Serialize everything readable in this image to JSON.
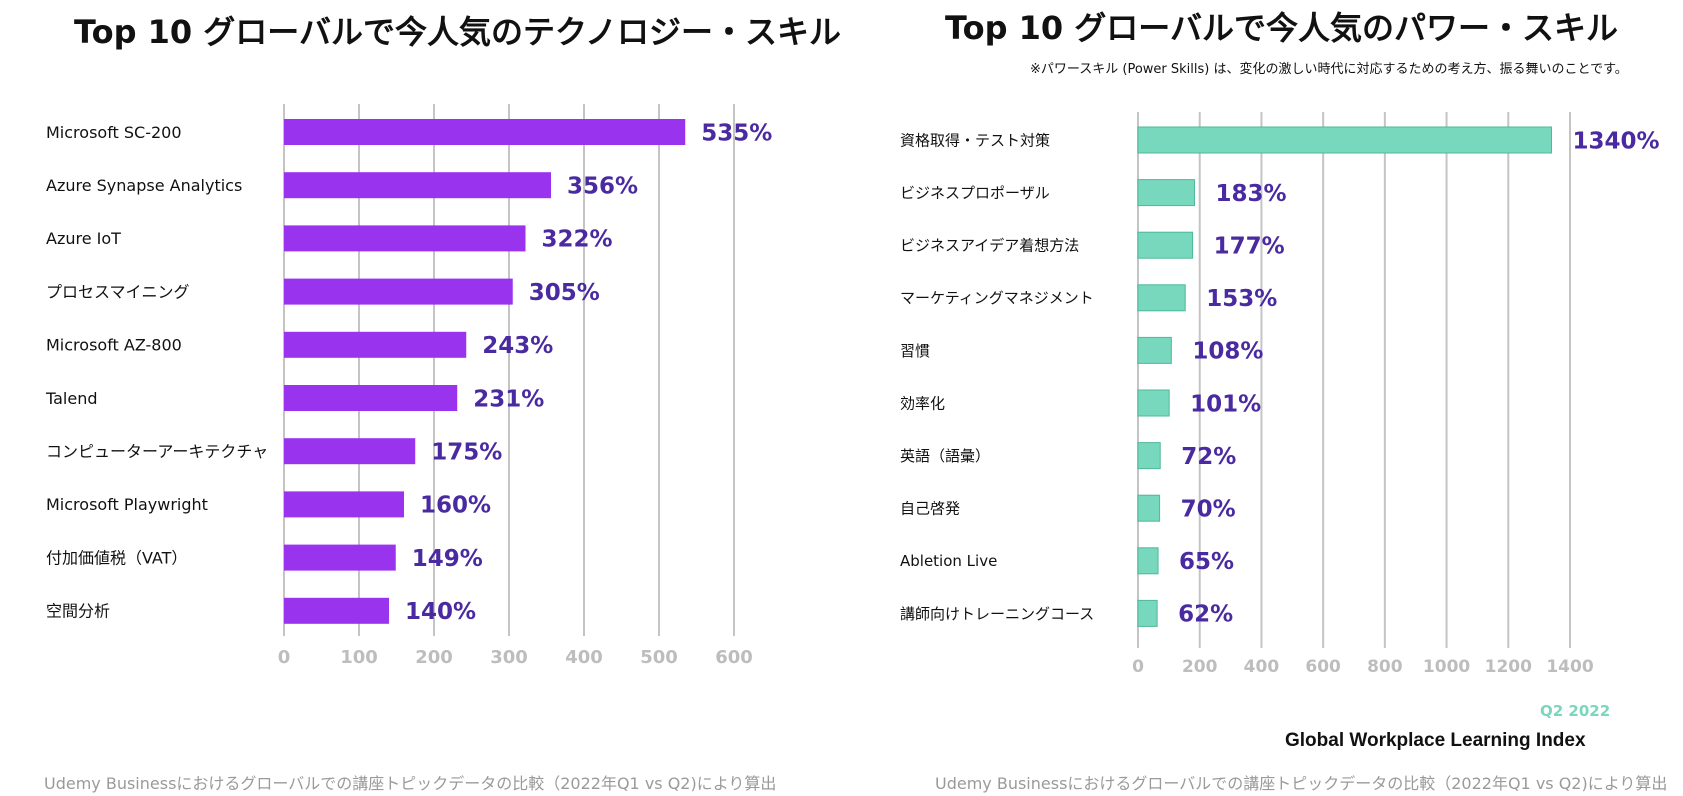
{
  "chart_data": [
    {
      "type": "bar",
      "orientation": "horizontal",
      "title": "Top 10 グローバルで今人気のテクノロジー・スキル",
      "categories": [
        "Microsoft SC-200",
        "Azure Synapse Analytics",
        "Azure IoT",
        "プロセスマイニング",
        "Microsoft AZ-800",
        "Talend",
        "コンピューターアーキテクチャ",
        "Microsoft Playwright",
        "付加価値税（VAT）",
        "空間分析"
      ],
      "values": [
        535,
        356,
        322,
        305,
        243,
        231,
        175,
        160,
        149,
        140
      ],
      "value_labels": [
        "535%",
        "356%",
        "322%",
        "305%",
        "243%",
        "231%",
        "175%",
        "160%",
        "149%",
        "140%"
      ],
      "xlim": [
        0,
        600
      ],
      "ticks": [
        "0",
        "100",
        "200",
        "300",
        "400",
        "500",
        "600"
      ],
      "tick_values": [
        0,
        100,
        200,
        300,
        400,
        500,
        600
      ],
      "grid": true,
      "bar_color": "#9933ee",
      "label_color": "#4a2aa0",
      "footer": "Udemy Businessにおけるグローバルでの講座トピックデータの比較（2022年Q1 vs Q2)により算出"
    },
    {
      "type": "bar",
      "orientation": "horizontal",
      "title": "Top 10 グローバルで今人気のパワー・スキル",
      "note": "※パワースキル (Power Skills) は、変化の激しい時代に対応するための考え方、振る舞いのことです。",
      "categories": [
        "資格取得・テスト対策",
        "ビジネスプロポーザル",
        "ビジネスアイデア着想方法",
        "マーケティングマネジメント",
        "習慣",
        "効率化",
        "英語（語彙）",
        "自己啓発",
        "Abletion Live",
        "講師向けトレーニングコース"
      ],
      "values": [
        1340,
        183,
        177,
        153,
        108,
        101,
        72,
        70,
        65,
        62
      ],
      "value_labels": [
        "1340%",
        "183%",
        "177%",
        "153%",
        "108%",
        "101%",
        "72%",
        "70%",
        "65%",
        "62%"
      ],
      "xlim": [
        0,
        1400
      ],
      "ticks": [
        "0",
        "200",
        "400",
        "600",
        "800",
        "1000",
        "1200",
        "1400"
      ],
      "tick_values": [
        0,
        200,
        400,
        600,
        800,
        1000,
        1200,
        1400
      ],
      "grid": true,
      "bar_color": "#77d8bd",
      "label_color": "#4a2aa0",
      "footer": "Udemy Businessにおけるグローバルでの講座トピックデータの比較（2022年Q1 vs Q2)により算出"
    }
  ],
  "legend_period": "Q2 2022",
  "legend_period_color": "#7ad6bc",
  "brand": "Global Workplace Learning Index"
}
